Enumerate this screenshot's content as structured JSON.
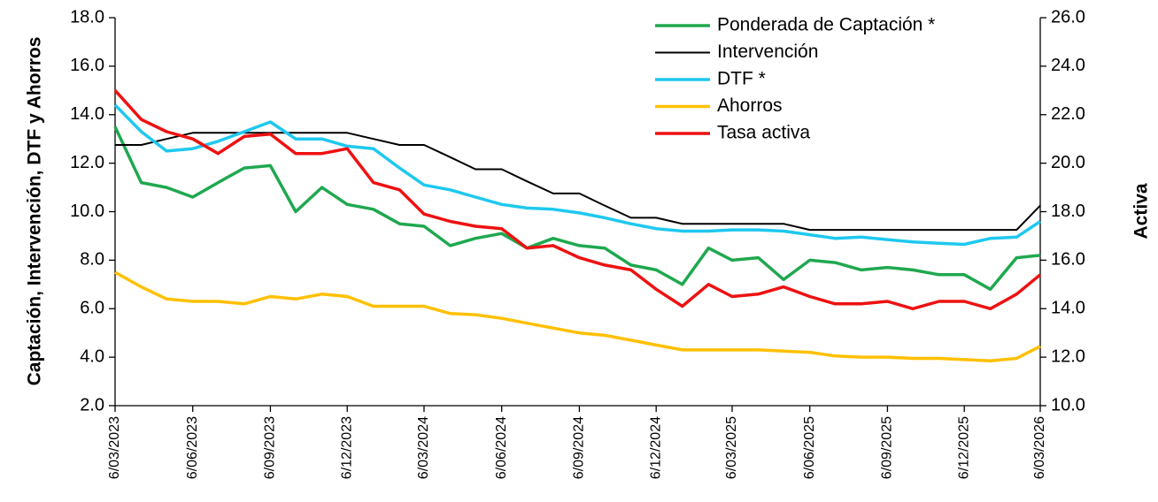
{
  "chart_data": {
    "type": "line",
    "ylabel": "Captación, Intervención, DTF y Ahorros",
    "y2label": "Activa",
    "x": [
      "6/03/2023",
      "6/04/2023",
      "6/05/2023",
      "6/06/2023",
      "6/07/2023",
      "6/08/2023",
      "6/09/2023",
      "6/10/2023",
      "6/11/2023",
      "6/12/2023",
      "6/01/2024",
      "6/02/2024",
      "6/03/2024",
      "6/04/2024",
      "6/05/2024",
      "6/06/2024",
      "6/07/2024",
      "6/08/2024",
      "6/09/2024",
      "6/10/2024",
      "6/11/2024",
      "6/12/2024",
      "6/01/2025",
      "6/02/2025",
      "6/03/2025",
      "6/04/2025",
      "6/05/2025",
      "6/06/2025",
      "6/07/2025",
      "6/08/2025",
      "6/09/2025",
      "6/10/2025",
      "6/11/2025",
      "6/12/2025",
      "6/01/2026",
      "6/02/2026",
      "6/03/2026"
    ],
    "xticks": [
      "6/03/2023",
      "6/06/2023",
      "6/09/2023",
      "6/12/2023",
      "6/03/2024",
      "6/06/2024",
      "6/09/2024",
      "6/12/2024",
      "6/03/2025",
      "6/06/2025",
      "6/09/2025",
      "6/12/2025",
      "6/03/2026"
    ],
    "series": [
      {
        "name": "Ponderada de Captación *",
        "color": "#1fa84f",
        "values": [
          13.5,
          11.2,
          11.0,
          10.6,
          11.2,
          11.8,
          11.9,
          10.0,
          11.0,
          10.3,
          10.1,
          9.5,
          9.4,
          8.6,
          8.9,
          9.1,
          8.5,
          8.9,
          8.6,
          8.5,
          7.8,
          7.6,
          7.0,
          8.5,
          8.0,
          8.1,
          7.2,
          8.0,
          7.9,
          7.6,
          7.7,
          7.6,
          7.4,
          7.4,
          6.8,
          8.1,
          8.2
        ]
      },
      {
        "name": "Intervención",
        "color": "#000000",
        "values": [
          12.75,
          12.75,
          13.0,
          13.25,
          13.25,
          13.25,
          13.25,
          13.25,
          13.25,
          13.25,
          13.0,
          12.75,
          12.75,
          12.25,
          11.75,
          11.75,
          11.25,
          10.75,
          10.75,
          10.25,
          9.75,
          9.75,
          9.5,
          9.5,
          9.5,
          9.5,
          9.5,
          9.25,
          9.25,
          9.25,
          9.25,
          9.25,
          9.25,
          9.25,
          9.25,
          9.25,
          10.25
        ]
      },
      {
        "name": "DTF *",
        "color": "#1ec8ef",
        "values": [
          14.4,
          13.3,
          12.5,
          12.6,
          12.9,
          13.3,
          13.7,
          13.0,
          13.0,
          12.7,
          12.6,
          11.8,
          11.1,
          10.9,
          10.6,
          10.3,
          10.15,
          10.1,
          9.95,
          9.75,
          9.5,
          9.3,
          9.2,
          9.2,
          9.25,
          9.25,
          9.2,
          9.05,
          8.9,
          8.95,
          8.85,
          8.75,
          8.7,
          8.65,
          8.9,
          8.95,
          9.6
        ]
      },
      {
        "name": "Ahorros",
        "color": "#ffc000",
        "values": [
          7.5,
          6.9,
          6.4,
          6.3,
          6.3,
          6.2,
          6.5,
          6.4,
          6.6,
          6.5,
          6.1,
          6.1,
          6.1,
          5.8,
          5.75,
          5.6,
          5.4,
          5.2,
          5.0,
          4.9,
          4.7,
          4.5,
          4.3,
          4.3,
          4.3,
          4.3,
          4.25,
          4.2,
          4.05,
          4.0,
          4.0,
          3.95,
          3.95,
          3.9,
          3.85,
          3.95,
          4.45
        ]
      },
      {
        "name": "Tasa activa",
        "color": "#ee1111",
        "axis": "y2",
        "values": [
          23.0,
          21.8,
          21.3,
          21.0,
          20.4,
          21.1,
          21.2,
          20.4,
          20.4,
          20.6,
          19.2,
          18.9,
          17.9,
          17.6,
          17.4,
          17.3,
          16.5,
          16.6,
          16.1,
          15.8,
          15.6,
          14.8,
          14.1,
          15.0,
          14.5,
          14.6,
          14.9,
          14.5,
          14.2,
          14.2,
          14.3,
          14.0,
          14.3,
          14.3,
          14.0,
          14.6,
          15.4
        ]
      }
    ],
    "ylim": [
      2,
      18
    ],
    "yticks": [
      {
        "value": 2,
        "label": "2.0"
      },
      {
        "value": 4,
        "label": "4.0"
      },
      {
        "value": 6,
        "label": "6.0"
      },
      {
        "value": 8,
        "label": "8.0"
      },
      {
        "value": 10,
        "label": "10.0"
      },
      {
        "value": 12,
        "label": "12.0"
      },
      {
        "value": 14,
        "label": "14.0"
      },
      {
        "value": 16,
        "label": "16.0"
      },
      {
        "value": 18,
        "label": "18.0"
      }
    ],
    "y2lim": [
      10,
      26
    ],
    "y2ticks": [
      {
        "value": 10,
        "label": "10.0"
      },
      {
        "value": 12,
        "label": "12.0"
      },
      {
        "value": 14,
        "label": "14.0"
      },
      {
        "value": 16,
        "label": "16.0"
      },
      {
        "value": 18,
        "label": "18.0"
      },
      {
        "value": 20,
        "label": "20.0"
      },
      {
        "value": 22,
        "label": "22.0"
      },
      {
        "value": 24,
        "label": "24.0"
      },
      {
        "value": 26,
        "label": "26.0"
      }
    ],
    "legend": "upper right"
  }
}
